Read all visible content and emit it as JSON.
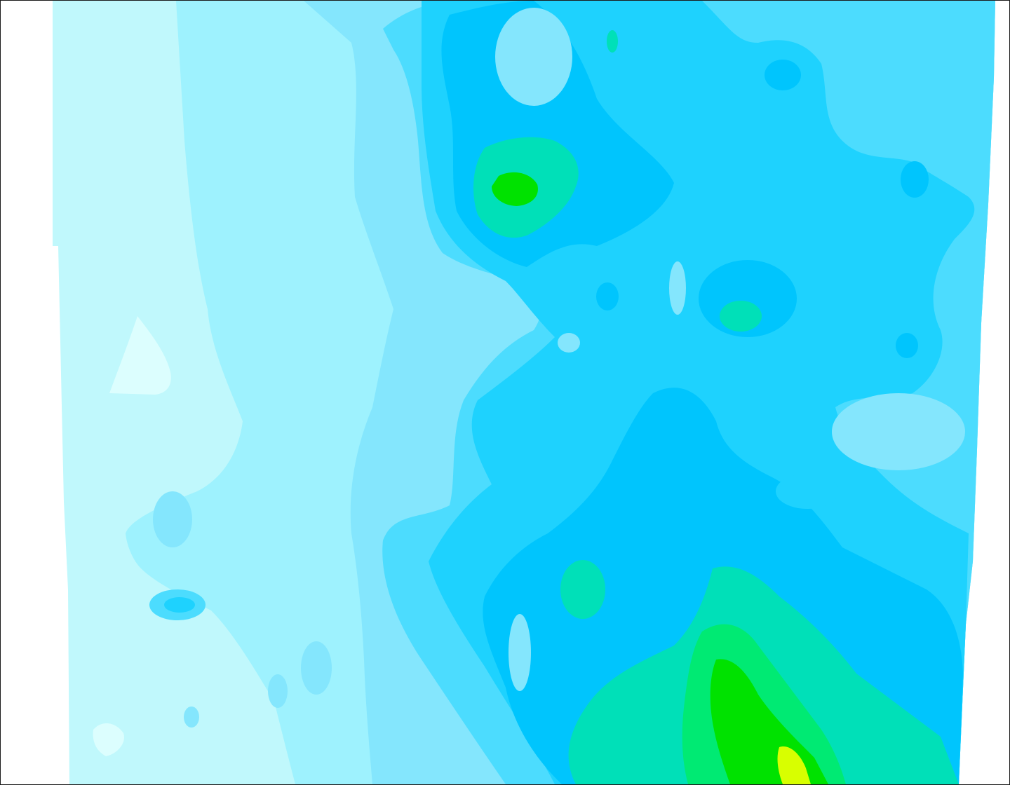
{
  "map": {
    "kind": "filled-contour-field",
    "labels_shown": false,
    "legend_shown": false,
    "palette": {
      "background": "#ffffff",
      "frame": "#1a1a1a",
      "level_0": "#dcfefe",
      "level_1": "#c0f8fc",
      "level_2": "#9ef2fe",
      "level_3": "#84e6fd",
      "level_4": "#4cdcfe",
      "level_5": "#1ed2fe",
      "level_6": "#00c5fd",
      "level_7": "#00e0b8",
      "level_8": "#00ea73",
      "level_9": "#00e200",
      "level_10": "#d8ff00"
    }
  }
}
